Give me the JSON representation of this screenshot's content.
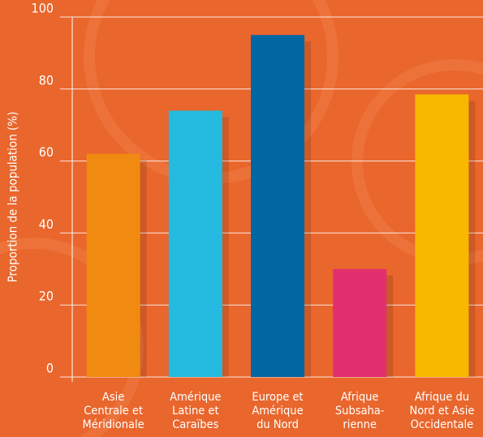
{
  "chart_data": {
    "type": "bar",
    "y_label": "Proportion de la population (%)",
    "categories": [
      [
        "Asie",
        "Centrale et",
        "Méridionale"
      ],
      [
        "Amérique",
        "Latine et",
        "Caraïbes"
      ],
      [
        "Europe et",
        "Amérique",
        "du Nord"
      ],
      [
        "Afrique",
        "Subsaha-",
        "rienne"
      ],
      [
        "Afrique du",
        "Nord et Asie",
        "Occidentale"
      ]
    ],
    "values": [
      62,
      74,
      95,
      30,
      78.5
    ],
    "colors": [
      "#f18a10",
      "#25badf",
      "#0067a3",
      "#e2306f",
      "#f8b800"
    ],
    "ylim": [
      0,
      100
    ],
    "yticks": [
      0,
      20,
      40,
      60,
      80,
      100
    ],
    "grid": true
  }
}
